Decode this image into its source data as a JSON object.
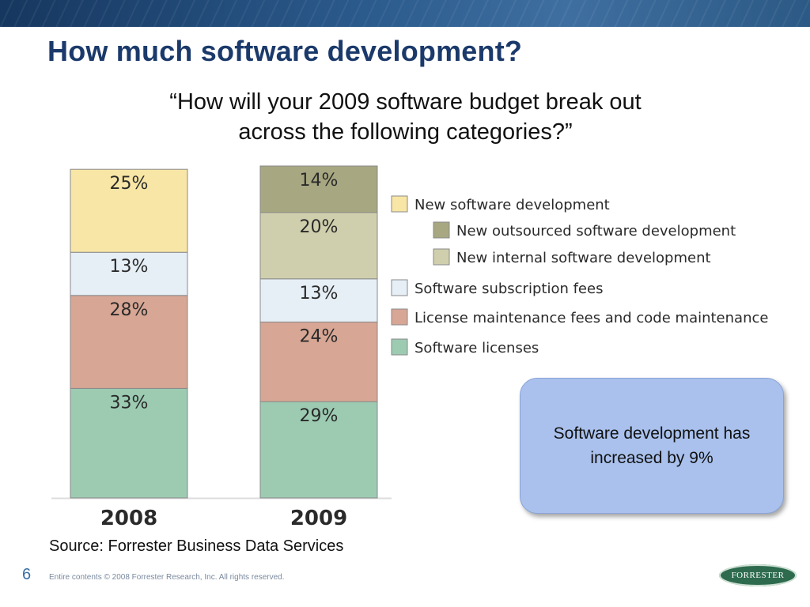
{
  "slide": {
    "title": "How much software development?",
    "question_line1": "“How will your 2009 software budget break out",
    "question_line2": "across the following categories?”",
    "callout_line1": "Software development has",
    "callout_line2": "increased by 9%",
    "source": "Source: Forrester Business Data Services",
    "page_number": "6",
    "copyright": "Entire contents © 2008  Forrester Research, Inc. All rights reserved.",
    "logo_text": "FORRESTER"
  },
  "chart_data": {
    "type": "bar",
    "stacked": true,
    "categories": [
      "2008",
      "2009"
    ],
    "series": [
      {
        "name": "Software licenses",
        "values": [
          33,
          29
        ],
        "labels": [
          "33%",
          "29%"
        ],
        "color": "#9ccbb2"
      },
      {
        "name": "License maintenance fees and code maintenance",
        "values": [
          28,
          24
        ],
        "labels": [
          "28%",
          "24%"
        ],
        "color": "#d7a694"
      },
      {
        "name": "Software subscription fees",
        "values": [
          13,
          13
        ],
        "labels": [
          "13%",
          "13%"
        ],
        "color": "#e6eef6"
      },
      {
        "name": "New software development",
        "values": [
          25,
          null
        ],
        "labels": [
          "25%",
          ""
        ],
        "color": "#f8e6a6"
      },
      {
        "name": "New internal software development",
        "values": [
          null,
          20
        ],
        "labels": [
          "",
          "20%"
        ],
        "color": "#cfcfad"
      },
      {
        "name": "New outsourced software development",
        "values": [
          null,
          14
        ],
        "labels": [
          "",
          "14%"
        ],
        "color": "#a7a781"
      }
    ],
    "legend": [
      {
        "label": "New software development",
        "color": "#f8e6a6",
        "indent": false
      },
      {
        "label": "New outsourced software development",
        "color": "#a7a781",
        "indent": true
      },
      {
        "label": "New internal software development",
        "color": "#cfcfad",
        "indent": true
      },
      {
        "label": "Software subscription fees",
        "color": "#e6eef6",
        "indent": false
      },
      {
        "label": "License maintenance fees and code maintenance",
        "color": "#d7a694",
        "indent": false
      },
      {
        "label": "Software licenses",
        "color": "#9ccbb2",
        "indent": false
      }
    ],
    "legend_position": "right",
    "grid": false,
    "ylim": [
      0,
      100
    ],
    "colors": {
      "label_text": "#2a2a2a",
      "bar_edge": "#8a8a8a",
      "axis_line": "#dddddd"
    }
  }
}
